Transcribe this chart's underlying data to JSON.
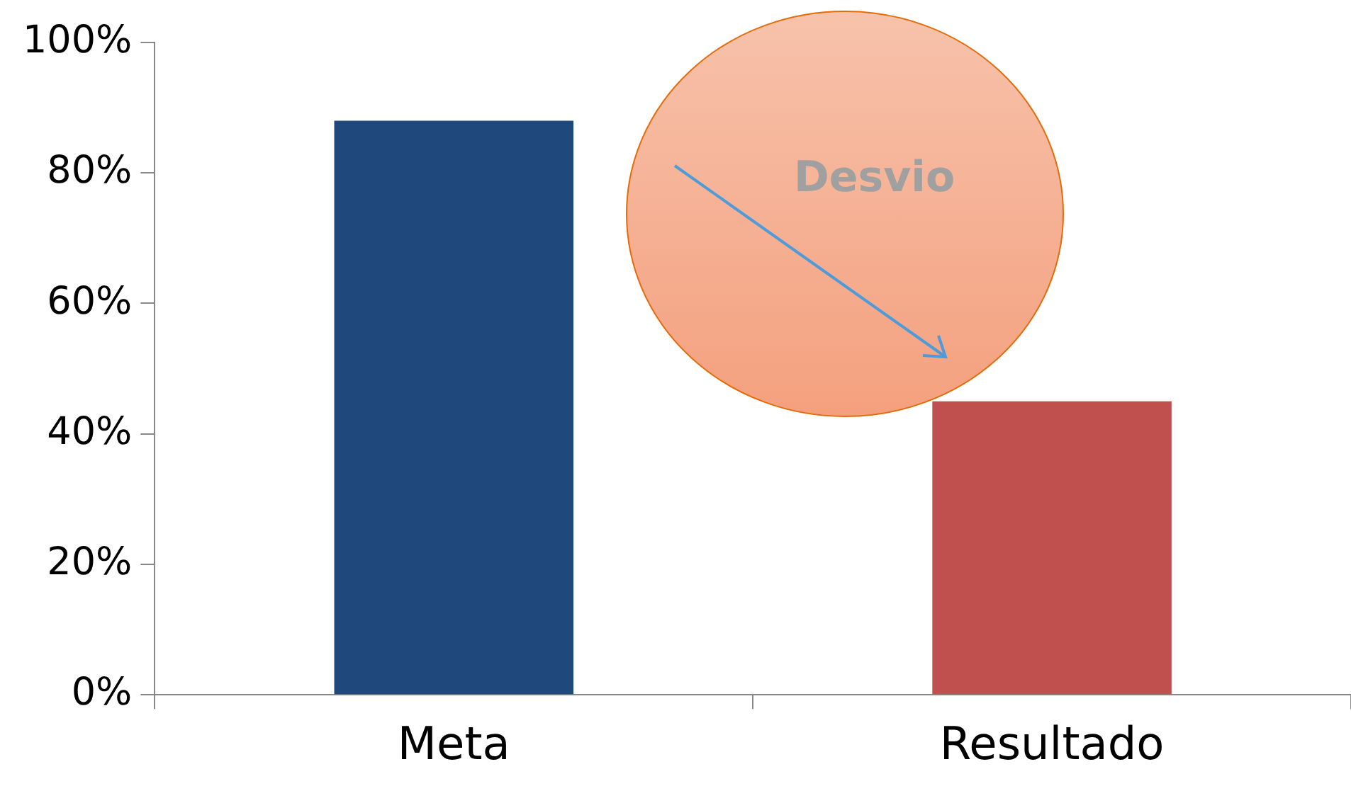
{
  "chart_data": {
    "type": "bar",
    "categories": [
      "Meta",
      "Resultado"
    ],
    "values": [
      88,
      45
    ],
    "colors": [
      "#1f497d",
      "#c0504d"
    ],
    "ylim": [
      0,
      100
    ],
    "yticks": [
      {
        "value": 0,
        "label": "0%"
      },
      {
        "value": 20,
        "label": "20%"
      },
      {
        "value": 40,
        "label": "40%"
      },
      {
        "value": 60,
        "label": "60%"
      },
      {
        "value": 80,
        "label": "80%"
      },
      {
        "value": 100,
        "label": "100%"
      }
    ],
    "grid": false,
    "legend": false,
    "annotations": [
      "Desvio"
    ]
  }
}
